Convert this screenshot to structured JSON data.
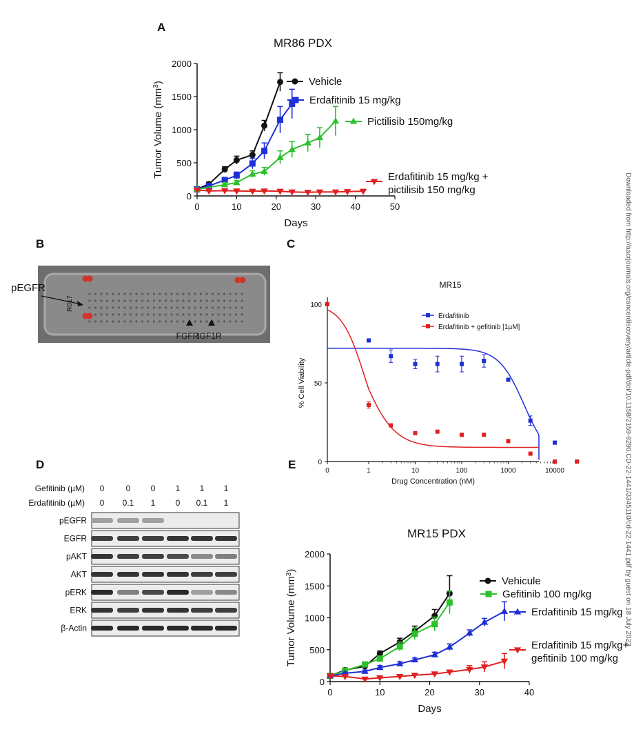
{
  "side_note": "Downloaded from http://aacrjournals.org/cancerdiscovery/article-pdf/doi/10.1158/2159-8290.CD-22-1441/3345110/cd-22-1441.pdf by guest on 18 July 2023",
  "panels": {
    "A": "A",
    "B": "B",
    "C": "C",
    "D": "D",
    "E": "E"
  },
  "blot_array": {
    "callout_label": "pEGFR",
    "spot_labels": [
      "FGFR",
      "IGF1R"
    ],
    "membrane_text": "R017"
  },
  "western_blot": {
    "treatment_rows": [
      {
        "label": "Gefitinib (µM)",
        "values": [
          "0",
          "0",
          "0",
          "1",
          "1",
          "1"
        ]
      },
      {
        "label": "Erdafitinib (µM)",
        "values": [
          "0",
          "0.1",
          "1",
          "0",
          "0.1",
          "1"
        ]
      }
    ],
    "bands": [
      {
        "label": "pEGFR",
        "intensity": [
          0.35,
          0.35,
          0.35,
          0.05,
          0.05,
          0.05
        ]
      },
      {
        "label": "EGFR",
        "intensity": [
          0.8,
          0.8,
          0.8,
          0.85,
          0.85,
          0.85
        ]
      },
      {
        "label": "pAKT",
        "intensity": [
          0.85,
          0.8,
          0.8,
          0.75,
          0.45,
          0.5
        ]
      },
      {
        "label": "AKT",
        "intensity": [
          0.85,
          0.85,
          0.85,
          0.85,
          0.8,
          0.8
        ]
      },
      {
        "label": "pERK",
        "intensity": [
          0.9,
          0.5,
          0.75,
          0.9,
          0.35,
          0.45
        ]
      },
      {
        "label": "ERK",
        "intensity": [
          0.85,
          0.8,
          0.85,
          0.85,
          0.8,
          0.8
        ]
      },
      {
        "label": "β-Actin",
        "intensity": [
          0.9,
          0.9,
          0.9,
          0.9,
          0.9,
          0.9
        ]
      }
    ]
  },
  "chart_data": [
    {
      "id": "A",
      "type": "line",
      "title": "MR86 PDX",
      "xlabel": "Days",
      "ylabel": "Tumor Volume (mm",
      "ylabel_sup": "3",
      "ylabel_end": ")",
      "xlim": [
        0,
        50
      ],
      "ylim": [
        0,
        2000
      ],
      "xticks": [
        0,
        10,
        20,
        30,
        40,
        50
      ],
      "yticks": [
        0,
        500,
        1000,
        1500,
        2000
      ],
      "legend_position": "inline-right",
      "series": [
        {
          "name": "Vehicle",
          "color": "#111111",
          "marker": "circle",
          "x": [
            0,
            3,
            7,
            10,
            14,
            17,
            21
          ],
          "y": [
            100,
            180,
            400,
            540,
            620,
            1060,
            1720
          ],
          "err": [
            20,
            30,
            40,
            60,
            60,
            80,
            140
          ]
        },
        {
          "name": "Erdafitinib 15 mg/kg",
          "color": "#1f2fd6",
          "marker": "square",
          "x": [
            0,
            3,
            7,
            10,
            14,
            17,
            21,
            24
          ],
          "y": [
            100,
            150,
            240,
            310,
            490,
            680,
            1150,
            1390
          ],
          "err": [
            20,
            25,
            40,
            50,
            80,
            120,
            200,
            220
          ]
        },
        {
          "name": "Pictilisib 150mg/kg",
          "color": "#2cc12c",
          "marker": "triangle",
          "x": [
            0,
            7,
            10,
            14,
            17,
            21,
            24,
            28,
            31,
            35
          ],
          "y": [
            100,
            170,
            200,
            330,
            370,
            580,
            700,
            800,
            880,
            1130
          ],
          "err": [
            20,
            30,
            30,
            50,
            60,
            100,
            120,
            130,
            150,
            220
          ]
        },
        {
          "name": "Erdafitinib 15 mg/kg +",
          "name_line2": "pictilisib 150 mg/kg",
          "color": "#e02020",
          "marker": "triangle-down",
          "x": [
            0,
            3,
            7,
            10,
            14,
            17,
            21,
            24,
            28,
            31,
            35,
            38,
            42
          ],
          "y": [
            90,
            75,
            80,
            75,
            70,
            75,
            70,
            60,
            55,
            60,
            60,
            65,
            70
          ],
          "err": [
            15,
            10,
            10,
            10,
            10,
            10,
            10,
            10,
            10,
            10,
            10,
            10,
            10
          ]
        }
      ]
    },
    {
      "id": "C",
      "type": "scatter",
      "title": "MR15",
      "xlabel": "Drug Concentration (nM)",
      "ylabel": "% Cell Viability",
      "xscale": "log",
      "xtick_labels": [
        "0",
        "1",
        "10",
        "100",
        "1000",
        "10000"
      ],
      "yticks": [
        0,
        50,
        100
      ],
      "ylim": [
        0,
        100
      ],
      "legend_position": "top-right",
      "series": [
        {
          "name": "Erdafitinib",
          "color": "#1f2fd6",
          "x": [
            1,
            3,
            10,
            30,
            100,
            300,
            1000,
            3000,
            10000,
            30000
          ],
          "y": [
            77,
            67,
            62,
            62,
            62,
            64,
            52,
            26,
            12,
            0
          ],
          "err": [
            1,
            4,
            3,
            5,
            5,
            4,
            1,
            3,
            1,
            0
          ],
          "fit": {
            "top": 72,
            "bottom": 0,
            "ic50": 2200,
            "hill": 1.6
          }
        },
        {
          "name": "Erdafitinib + gefitinib [1µM]",
          "color": "#e02020",
          "x": [
            0.1,
            1,
            3,
            10,
            30,
            100,
            300,
            1000,
            3000,
            10000,
            30000
          ],
          "y": [
            100,
            36,
            23,
            18,
            19,
            17,
            17,
            13,
            5,
            0,
            0
          ],
          "err": [
            0,
            2,
            1,
            0,
            0,
            0,
            0,
            1,
            0,
            0,
            0
          ],
          "fit": {
            "top": 100,
            "bottom": 9,
            "ic50": 0.75,
            "hill": 1.3
          }
        }
      ]
    },
    {
      "id": "E",
      "type": "line",
      "title": "MR15 PDX",
      "xlabel": "Days",
      "ylabel": "Tumor Volume (mm",
      "ylabel_sup": "3",
      "ylabel_end": ")",
      "xlim": [
        0,
        40
      ],
      "ylim": [
        0,
        2000
      ],
      "xticks": [
        0,
        10,
        20,
        30,
        40
      ],
      "yticks": [
        0,
        500,
        1000,
        1500,
        2000
      ],
      "legend_position": "inline-right",
      "series": [
        {
          "name": "Vehicule",
          "color": "#111111",
          "marker": "circle",
          "x": [
            0,
            3,
            7,
            10,
            14,
            17,
            21,
            24
          ],
          "y": [
            90,
            180,
            240,
            440,
            620,
            790,
            1030,
            1380
          ],
          "err": [
            20,
            30,
            40,
            40,
            60,
            80,
            100,
            280
          ]
        },
        {
          "name": "Gefitinib 100 mg/kg",
          "color": "#2cc12c",
          "marker": "square",
          "x": [
            0,
            3,
            7,
            10,
            14,
            17,
            21,
            24
          ],
          "y": [
            90,
            170,
            270,
            360,
            550,
            750,
            900,
            1240
          ],
          "err": [
            20,
            30,
            30,
            40,
            70,
            90,
            110,
            180
          ]
        },
        {
          "name": "Erdafitinib 15 mg/kg",
          "color": "#1f2fd6",
          "marker": "triangle",
          "x": [
            0,
            3,
            7,
            10,
            14,
            17,
            21,
            24,
            28,
            31,
            35
          ],
          "y": [
            90,
            130,
            160,
            220,
            280,
            340,
            420,
            540,
            760,
            930,
            1100
          ],
          "err": [
            15,
            20,
            20,
            30,
            30,
            30,
            40,
            50,
            50,
            60,
            150
          ]
        },
        {
          "name": "Erdafitinib 15 mg/kg+",
          "name_line2": "gefitinib 100 mg/kg",
          "color": "#e02020",
          "marker": "triangle-down",
          "x": [
            0,
            3,
            7,
            10,
            14,
            17,
            21,
            24,
            28,
            31,
            35
          ],
          "y": [
            90,
            80,
            40,
            60,
            80,
            100,
            120,
            150,
            190,
            230,
            320
          ],
          "err": [
            15,
            10,
            10,
            10,
            15,
            15,
            20,
            30,
            60,
            80,
            120
          ]
        }
      ]
    }
  ]
}
